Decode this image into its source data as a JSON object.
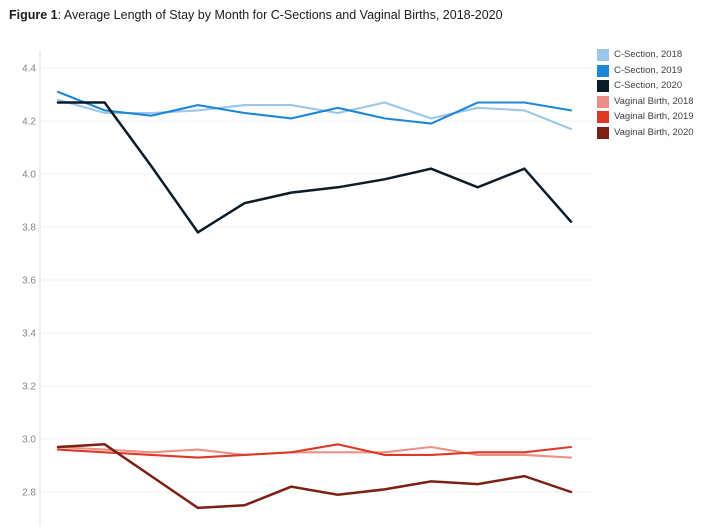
{
  "title": {
    "bold": "Figure 1",
    "rest": ": Average Length of Stay by Month for C-Sections and Vaginal Births, 2018-2020"
  },
  "chart_data": {
    "type": "line",
    "title": "Figure 1: Average Length of Stay by Month for C-Sections and Vaginal Births, 2018-2020",
    "xlabel": "",
    "ylabel": "",
    "x": [
      1,
      2,
      3,
      4,
      5,
      6,
      7,
      8,
      9,
      10,
      11,
      12
    ],
    "x_labels_visible": false,
    "ylim": [
      2.8,
      4.4
    ],
    "yticks": [
      4.4,
      4.2,
      4.0,
      3.8,
      3.6,
      3.4,
      3.2,
      3.0,
      2.8
    ],
    "ytick_labels": [
      "4.4",
      "4.2",
      "4.0",
      "3.8",
      "3.6",
      "3.4",
      "3.2",
      "3.0",
      "2.8"
    ],
    "grid": "horizontal",
    "gridline_color": "#f0f0f0",
    "axis_line_color": "#dcdcdc",
    "tick_label_color": "#868686",
    "legend_position": "top-right",
    "series": [
      {
        "name": "C-Section, 2018",
        "color": "#9BC7EB",
        "values": [
          4.28,
          4.23,
          4.23,
          4.24,
          4.26,
          4.26,
          4.23,
          4.27,
          4.21,
          4.25,
          4.24,
          4.17
        ]
      },
      {
        "name": "C-Section, 2019",
        "color": "#1E87D5",
        "values": [
          4.31,
          4.24,
          4.22,
          4.26,
          4.23,
          4.21,
          4.25,
          4.21,
          4.19,
          4.27,
          4.27,
          4.24
        ]
      },
      {
        "name": "C-Section, 2020",
        "color": "#0B1B28",
        "values": [
          4.27,
          4.27,
          4.03,
          3.78,
          3.89,
          3.93,
          3.95,
          3.98,
          4.02,
          3.95,
          4.02,
          3.82
        ]
      },
      {
        "name": "Vaginal Birth, 2018",
        "color": "#EA9087",
        "values": [
          2.97,
          2.96,
          2.95,
          2.96,
          2.94,
          2.95,
          2.95,
          2.95,
          2.97,
          2.94,
          2.94,
          2.93
        ]
      },
      {
        "name": "Vaginal Birth, 2019",
        "color": "#DC3A27",
        "values": [
          2.96,
          2.95,
          2.94,
          2.93,
          2.94,
          2.95,
          2.98,
          2.94,
          2.94,
          2.95,
          2.95,
          2.97
        ]
      },
      {
        "name": "Vaginal Birth, 2020",
        "color": "#7B2012",
        "values": [
          2.97,
          2.98,
          2.86,
          2.74,
          2.75,
          2.82,
          2.79,
          2.81,
          2.84,
          2.83,
          2.86,
          2.8
        ]
      }
    ]
  }
}
